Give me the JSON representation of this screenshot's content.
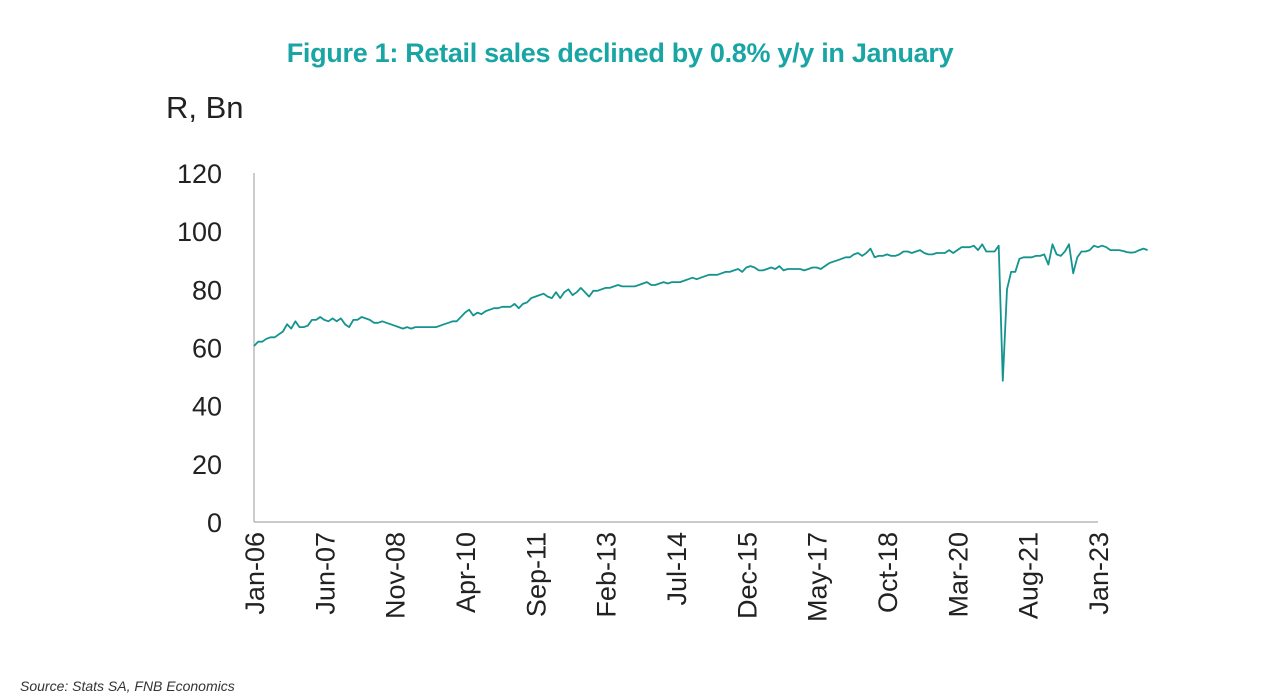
{
  "chart_data": {
    "type": "line",
    "title": "Figure 1: Retail sales declined by 0.8% y/y in January",
    "ylabel": "R, Bn",
    "xlabel": "",
    "ylim": [
      0,
      120
    ],
    "yticks": [
      "0",
      "20",
      "40",
      "60",
      "80",
      "100",
      "120"
    ],
    "xticks": [
      "Jan-06",
      "Jun-07",
      "Nov-08",
      "Apr-10",
      "Sep-11",
      "Feb-13",
      "Jul-14",
      "Dec-15",
      "May-17",
      "Oct-18",
      "Mar-20",
      "Aug-21",
      "Jan-23"
    ],
    "x_start": "Jan-06",
    "x_frequency": "monthly",
    "series": [
      {
        "name": "Retail sales",
        "color": "#14948f",
        "values": [
          60.5,
          62,
          62,
          63,
          63.5,
          63.5,
          64.5,
          65.5,
          68,
          66.5,
          69,
          67,
          67,
          67.5,
          69.5,
          69.5,
          70.5,
          69.5,
          69,
          70,
          69,
          70,
          68,
          67,
          69.5,
          69.5,
          70.5,
          70,
          69.5,
          68.5,
          68.5,
          69,
          68.5,
          68,
          67.5,
          67,
          66.5,
          67,
          66.5,
          67,
          67,
          67,
          67,
          67,
          67,
          67.5,
          68,
          68.5,
          69,
          69,
          70.5,
          72,
          73,
          71,
          72,
          71.5,
          72.5,
          73,
          73.5,
          73.5,
          74,
          74,
          74,
          75,
          73.5,
          75,
          75.5,
          77,
          77.5,
          78,
          78.5,
          77.5,
          77,
          79,
          77,
          79,
          80,
          78,
          79,
          80.5,
          79,
          77.5,
          79.5,
          79.5,
          80,
          80.5,
          80.5,
          81,
          81.5,
          81,
          81,
          81,
          81,
          81.5,
          82,
          82.5,
          81.5,
          81.5,
          82,
          82.5,
          82,
          82.5,
          82.5,
          82.5,
          83,
          83.5,
          84,
          83.5,
          84,
          84.5,
          85,
          85,
          85,
          85.5,
          86,
          86,
          86.5,
          87,
          86,
          87.5,
          88,
          87.5,
          86.5,
          86.5,
          87,
          87.5,
          87,
          88,
          86.5,
          87,
          87,
          87,
          87,
          86.5,
          87,
          87.5,
          87.5,
          87,
          88,
          89,
          89.5,
          90,
          90.5,
          91,
          91,
          92,
          92.5,
          91.5,
          92.5,
          94,
          91,
          91.5,
          91.5,
          92,
          91.5,
          91.5,
          92,
          93,
          93,
          92.5,
          93,
          93.5,
          92.5,
          92,
          92,
          92.5,
          92.5,
          92.5,
          93.5,
          92.5,
          93.5,
          94.5,
          94.5,
          94.5,
          95,
          93.5,
          95.5,
          93,
          93,
          93,
          95,
          48.6,
          80,
          86,
          86,
          90.5,
          91,
          91,
          91,
          91.5,
          91.5,
          92,
          88.5,
          95.5,
          92,
          91.5,
          93,
          95.5,
          85.5,
          91,
          93,
          93,
          93.5,
          95,
          94.5,
          95,
          94.5,
          93.5,
          93.5,
          93.5,
          93.2,
          92.8,
          92.6,
          92.8,
          93.5,
          94,
          93.5
        ]
      }
    ],
    "grid": false,
    "legend": "none"
  },
  "source": "Source: Stats SA, FNB Economics"
}
